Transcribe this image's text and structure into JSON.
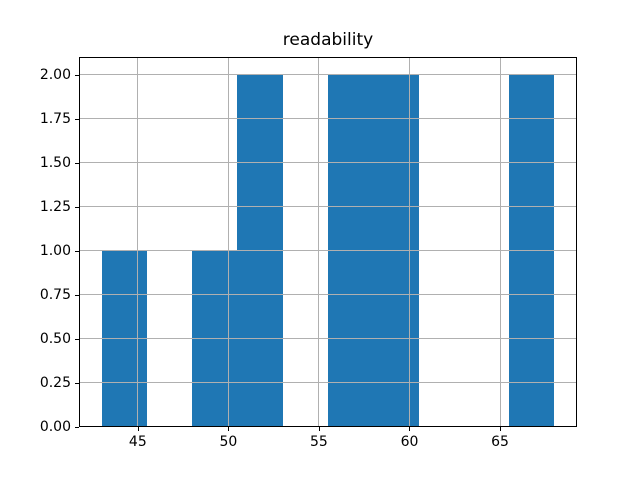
{
  "chart_data": {
    "type": "bar",
    "subtype": "histogram",
    "title": "readability",
    "xlabel": "",
    "ylabel": "",
    "bins": {
      "edges": [
        43,
        45.5,
        48,
        50.5,
        53,
        55.5,
        58,
        60.5,
        63,
        65.5,
        68
      ],
      "counts": [
        1,
        0,
        1,
        2,
        0,
        2,
        2,
        0,
        0,
        2
      ]
    },
    "xlim": [
      41.75,
      69.25
    ],
    "ylim": [
      0,
      2.1
    ],
    "xticks": {
      "values": [
        45,
        50,
        55,
        60,
        65
      ],
      "labels": [
        "45",
        "50",
        "55",
        "60",
        "65"
      ]
    },
    "yticks": {
      "values": [
        0,
        0.25,
        0.5,
        0.75,
        1,
        1.25,
        1.5,
        1.75,
        2
      ],
      "labels": [
        "0.00",
        "0.25",
        "0.50",
        "0.75",
        "1.00",
        "1.25",
        "1.50",
        "1.75",
        "2.00"
      ]
    },
    "grid": true,
    "grid_on_top_of_bars": true,
    "colors": {
      "bar": "#1f77b4",
      "grid": "#b0b0b0",
      "spine": "#000000",
      "background": "#ffffff",
      "text": "#000000"
    }
  }
}
